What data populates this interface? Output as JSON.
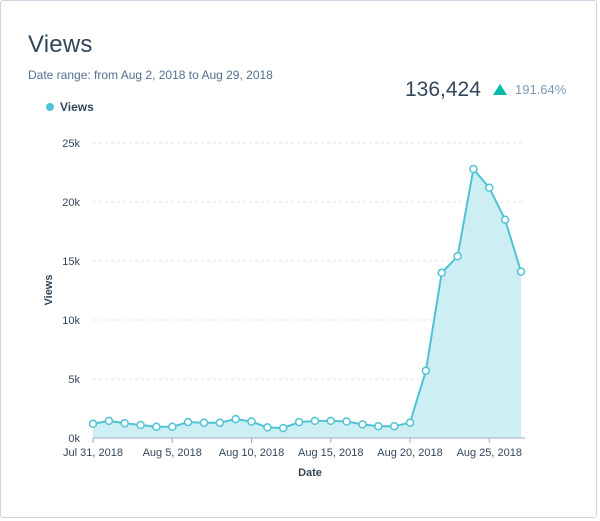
{
  "card": {
    "title": "Views",
    "subtitle": "Date range: from Aug 2, 2018 to Aug 29, 2018",
    "total": "136,424",
    "change": "191.64%",
    "change_icon": "triangle-up-icon",
    "accent_color": "#00bda5"
  },
  "chart_data": {
    "type": "area",
    "xlabel": "Date",
    "ylabel": "Views",
    "ylim": [
      0,
      25000
    ],
    "yticks": [
      0,
      5000,
      10000,
      15000,
      20000,
      25000
    ],
    "ytick_labels": [
      "0k",
      "5k",
      "10k",
      "15k",
      "20k",
      "25k"
    ],
    "xtick_labels": [
      "Jul 31, 2018",
      "Aug 5, 2018",
      "Aug 10, 2018",
      "Aug 15, 2018",
      "Aug 20, 2018",
      "Aug 25, 2018"
    ],
    "xtick_index": [
      0,
      5,
      10,
      15,
      20,
      25
    ],
    "grid": true,
    "legend": "top-left",
    "series": [
      {
        "name": "Views",
        "color": "#4fc3d4",
        "fill": "#cdeff3",
        "x": [
          "Jul 31, 2018",
          "Aug 1, 2018",
          "Aug 2, 2018",
          "Aug 3, 2018",
          "Aug 4, 2018",
          "Aug 5, 2018",
          "Aug 6, 2018",
          "Aug 7, 2018",
          "Aug 8, 2018",
          "Aug 9, 2018",
          "Aug 10, 2018",
          "Aug 11, 2018",
          "Aug 12, 2018",
          "Aug 13, 2018",
          "Aug 14, 2018",
          "Aug 15, 2018",
          "Aug 16, 2018",
          "Aug 17, 2018",
          "Aug 18, 2018",
          "Aug 19, 2018",
          "Aug 20, 2018",
          "Aug 21, 2018",
          "Aug 22, 2018",
          "Aug 23, 2018",
          "Aug 24, 2018",
          "Aug 25, 2018",
          "Aug 26, 2018",
          "Aug 27, 2018"
        ],
        "values": [
          1200,
          1450,
          1250,
          1100,
          950,
          950,
          1350,
          1300,
          1300,
          1600,
          1400,
          900,
          850,
          1350,
          1450,
          1450,
          1400,
          1150,
          1000,
          1000,
          1300,
          5700,
          14000,
          15400,
          22800,
          21200,
          18500,
          14100
        ]
      }
    ]
  }
}
